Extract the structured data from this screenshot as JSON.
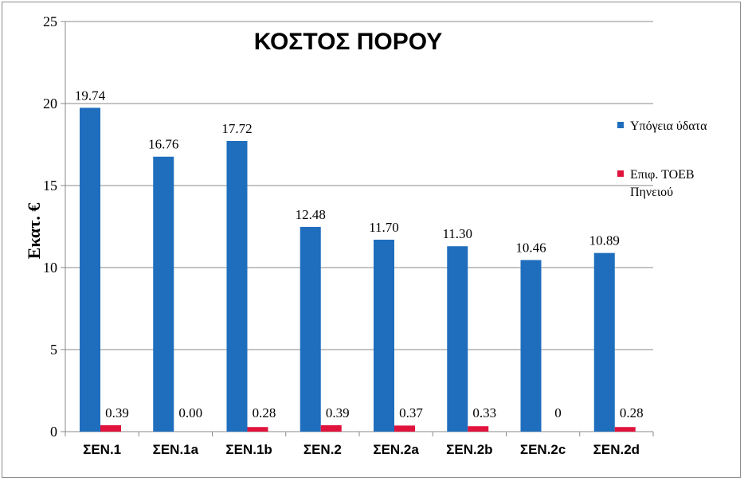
{
  "chart_data": {
    "type": "bar",
    "title": "ΚΟΣΤΟΣ ΠΟΡΟΥ",
    "xlabel": "",
    "ylabel": "Εκατ. €",
    "ylim": [
      0,
      25
    ],
    "yticks": [
      "0",
      "5",
      "10",
      "15",
      "20",
      "25"
    ],
    "grid": true,
    "legend_position": "right",
    "categories": [
      "ΣΕΝ.1",
      "ΣΕΝ.1a",
      "ΣΕΝ.1b",
      "ΣΕΝ.2",
      "ΣΕΝ.2a",
      "ΣΕΝ.2b",
      "ΣΕΝ.2c",
      "ΣΕΝ.2d"
    ],
    "series": [
      {
        "name": "Υπόγεια ύδατα",
        "color": "#1f6ebd",
        "values": [
          19.74,
          16.76,
          17.72,
          12.48,
          11.7,
          11.3,
          10.46,
          10.89
        ],
        "labels": [
          "19.74",
          "16.76",
          "17.72",
          "12.48",
          "11.70",
          "11.30",
          "10.46",
          "10.89"
        ]
      },
      {
        "name": "Επιφ. ΤΟΕΒ Πηνειού",
        "name_lines": [
          "Επιφ. ΤΟΕΒ",
          "Πηνειού"
        ],
        "color": "#e0133c",
        "values": [
          0.39,
          0.0,
          0.28,
          0.39,
          0.37,
          0.33,
          0,
          0.28
        ],
        "labels": [
          "0.39",
          "0.00",
          "0.28",
          "0.39",
          "0.37",
          "0.33",
          "0",
          "0.28"
        ]
      }
    ]
  }
}
